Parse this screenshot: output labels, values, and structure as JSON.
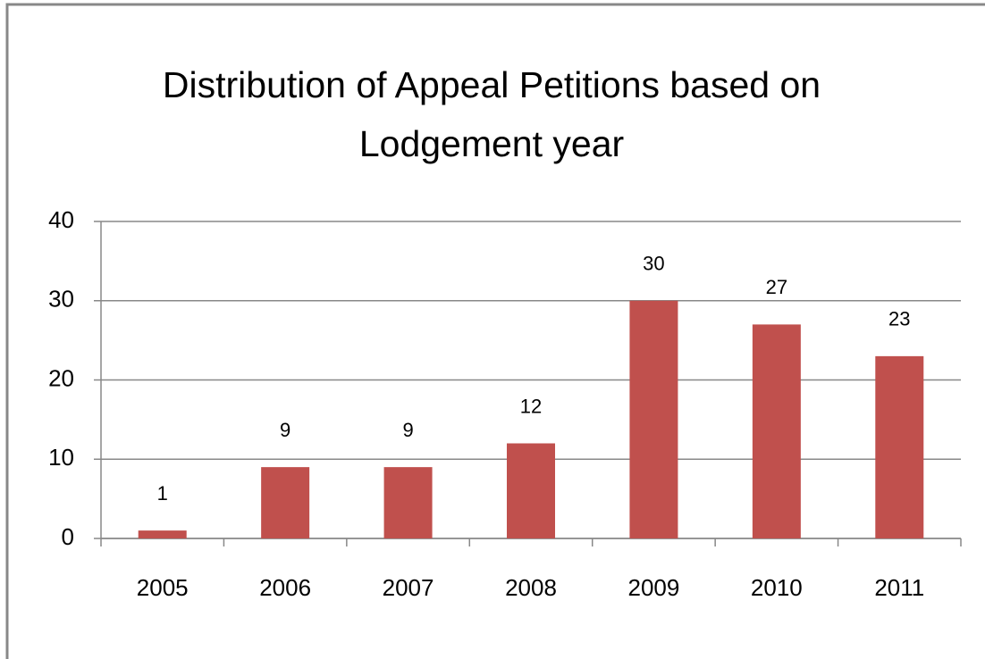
{
  "chart_data": {
    "type": "bar",
    "title": "Distribution of Appeal Petitions based on Lodgement year",
    "categories": [
      "2005",
      "2006",
      "2007",
      "2008",
      "2009",
      "2010",
      "2011"
    ],
    "values": [
      1,
      9,
      9,
      12,
      30,
      27,
      23
    ],
    "color": "#c0504d",
    "ylim": [
      0,
      40
    ],
    "yticks": [
      0,
      10,
      20,
      30,
      40
    ],
    "grid": true
  }
}
